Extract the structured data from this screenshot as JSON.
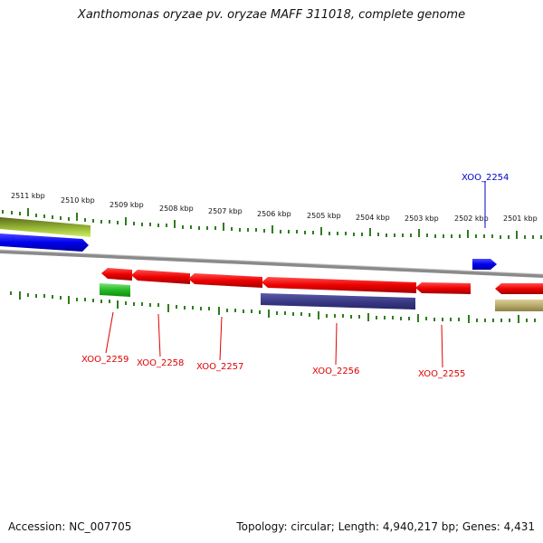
{
  "title": "Xanthomonas oryzae pv. oryzae MAFF 311018, complete genome",
  "footer": {
    "accession": "Accession: NC_007705",
    "info": "Topology: circular; Length: 4,940,217 bp; Genes: 4,431"
  },
  "scale_labels": [
    "2511 kbp",
    "2510 kbp",
    "2509 kbp",
    "2508 kbp",
    "2507 kbp",
    "2506 kbp",
    "2505 kbp",
    "2504 kbp",
    "2503 kbp",
    "2502 kbp",
    "2501 kbp"
  ],
  "gene_labels": [
    {
      "id": "XOO_2254",
      "color": "#0000cc"
    },
    {
      "id": "XOO_2255",
      "color": "#e00000"
    },
    {
      "id": "XOO_2256",
      "color": "#e00000"
    },
    {
      "id": "XOO_2257",
      "color": "#e00000"
    },
    {
      "id": "XOO_2258",
      "color": "#e00000"
    },
    {
      "id": "XOO_2259",
      "color": "#e00000"
    }
  ],
  "colors": {
    "forward_gene": "#0000ee",
    "reverse_gene": "#ee0000",
    "tick": "#2e7d1e",
    "backbone": "#888888"
  }
}
